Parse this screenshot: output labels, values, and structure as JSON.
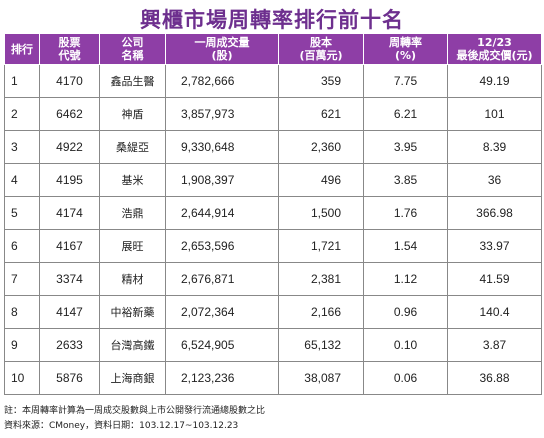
{
  "title": "興櫃市場周轉率排行前十名",
  "headers": [
    {
      "line1": "排行",
      "line2": ""
    },
    {
      "line1": "股票",
      "line2": "代號"
    },
    {
      "line1": "公司",
      "line2": "名稱"
    },
    {
      "line1": "一周成交量",
      "line2": "(股)"
    },
    {
      "line1": "股本",
      "line2": "(百萬元)"
    },
    {
      "line1": "周轉率",
      "line2": "(%)"
    },
    {
      "line1": "12/23",
      "line2": "最後成交價(元)"
    }
  ],
  "rows": [
    {
      "rank": "1",
      "code": "4170",
      "name": "鑫品生醫",
      "volume": "2,782,666",
      "capital": "359",
      "turnover": "7.75",
      "price": "49.19"
    },
    {
      "rank": "2",
      "code": "6462",
      "name": "神盾",
      "volume": "3,857,973",
      "capital": "621",
      "turnover": "6.21",
      "price": "101"
    },
    {
      "rank": "3",
      "code": "4922",
      "name": "桑緹亞",
      "volume": "9,330,648",
      "capital": "2,360",
      "turnover": "3.95",
      "price": "8.39"
    },
    {
      "rank": "4",
      "code": "4195",
      "name": "基米",
      "volume": "1,908,397",
      "capital": "496",
      "turnover": "3.85",
      "price": "36"
    },
    {
      "rank": "5",
      "code": "4174",
      "name": "浩鼎",
      "volume": "2,644,914",
      "capital": "1,500",
      "turnover": "1.76",
      "price": "366.98"
    },
    {
      "rank": "6",
      "code": "4167",
      "name": "展旺",
      "volume": "2,653,596",
      "capital": "1,721",
      "turnover": "1.54",
      "price": "33.97"
    },
    {
      "rank": "7",
      "code": "3374",
      "name": "精材",
      "volume": "2,676,871",
      "capital": "2,381",
      "turnover": "1.12",
      "price": "41.59"
    },
    {
      "rank": "8",
      "code": "4147",
      "name": "中裕新藥",
      "volume": "2,072,364",
      "capital": "2,166",
      "turnover": "0.96",
      "price": "140.4"
    },
    {
      "rank": "9",
      "code": "2633",
      "name": "台灣高鐵",
      "volume": "6,524,905",
      "capital": "65,132",
      "turnover": "0.10",
      "price": "3.87"
    },
    {
      "rank": "10",
      "code": "5876",
      "name": "上海商銀",
      "volume": "2,123,236",
      "capital": "38,087",
      "turnover": "0.06",
      "price": "36.88"
    }
  ],
  "notes": [
    "註：本周轉率計算為一周成交股數與上市公開發行流通總股數之比",
    "資料來源：CMoney，資料日期：103.12.17~103.12.23"
  ],
  "colors": {
    "header_bg": "#8e3ea6",
    "title": "#6d2f8e"
  }
}
